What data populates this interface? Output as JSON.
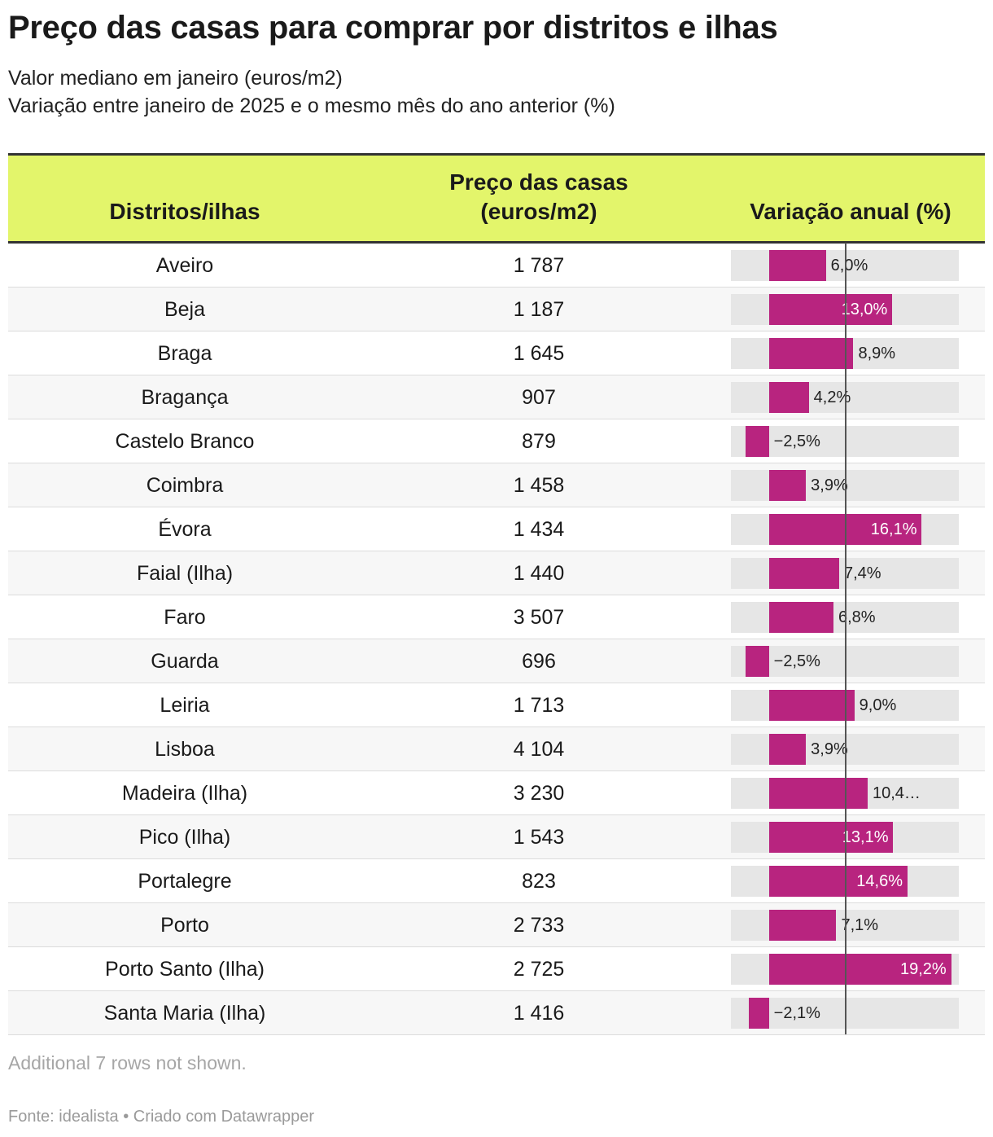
{
  "header": {
    "title": "Preço das casas para comprar por distritos e ilhas",
    "subtitle_1": "Valor mediano em janeiro (euros/m2)",
    "subtitle_2": "Variação entre janeiro de 2025 e o mesmo mês do ano anterior (%)"
  },
  "table": {
    "col_name": "Distritos/ilhas",
    "col_price_1": "Preço das casas",
    "col_price_2": "(euros/m2)",
    "col_var": "Variação anual (%)"
  },
  "chart_data": {
    "type": "table",
    "title": "Preço das casas para comprar por distritos e ilhas",
    "columns": [
      "Distritos/ilhas",
      "Preço das casas (euros/m2)",
      "Variação anual (%)"
    ],
    "bar_range": [
      -4.0,
      20.0
    ],
    "rows": [
      {
        "name": "Aveiro",
        "price": "1 787",
        "variation": 6.0,
        "variation_label": "6,0%"
      },
      {
        "name": "Beja",
        "price": "1 187",
        "variation": 13.0,
        "variation_label": "13,0%"
      },
      {
        "name": "Braga",
        "price": "1 645",
        "variation": 8.9,
        "variation_label": "8,9%"
      },
      {
        "name": "Bragança",
        "price": "907",
        "variation": 4.2,
        "variation_label": "4,2%"
      },
      {
        "name": "Castelo Branco",
        "price": "879",
        "variation": -2.5,
        "variation_label": "−2,5%"
      },
      {
        "name": "Coimbra",
        "price": "1 458",
        "variation": 3.9,
        "variation_label": "3,9%"
      },
      {
        "name": "Évora",
        "price": "1 434",
        "variation": 16.1,
        "variation_label": "16,1%"
      },
      {
        "name": "Faial (Ilha)",
        "price": "1 440",
        "variation": 7.4,
        "variation_label": "7,4%"
      },
      {
        "name": "Faro",
        "price": "3 507",
        "variation": 6.8,
        "variation_label": "6,8%"
      },
      {
        "name": "Guarda",
        "price": "696",
        "variation": -2.5,
        "variation_label": "−2,5%"
      },
      {
        "name": "Leiria",
        "price": "1 713",
        "variation": 9.0,
        "variation_label": "9,0%"
      },
      {
        "name": "Lisboa",
        "price": "4 104",
        "variation": 3.9,
        "variation_label": "3,9%"
      },
      {
        "name": "Madeira (Ilha)",
        "price": "3 230",
        "variation": 10.4,
        "variation_label": "10,4…"
      },
      {
        "name": "Pico (Ilha)",
        "price": "1 543",
        "variation": 13.1,
        "variation_label": "13,1%"
      },
      {
        "name": "Portalegre",
        "price": "823",
        "variation": 14.6,
        "variation_label": "14,6%"
      },
      {
        "name": "Porto",
        "price": "2 733",
        "variation": 7.1,
        "variation_label": "7,1%"
      },
      {
        "name": "Porto Santo (Ilha)",
        "price": "2 725",
        "variation": 19.2,
        "variation_label": "19,2%"
      },
      {
        "name": "Santa Maria (Ilha)",
        "price": "1 416",
        "variation": -2.1,
        "variation_label": "−2,1%"
      }
    ]
  },
  "colors": {
    "header_bg": "#e3f56b",
    "bar": "#b8247f",
    "bar_bg": "#e6e6e6"
  },
  "footer": {
    "note": "Additional 7 rows not shown.",
    "source": "Fonte: idealista • Criado com Datawrapper"
  }
}
